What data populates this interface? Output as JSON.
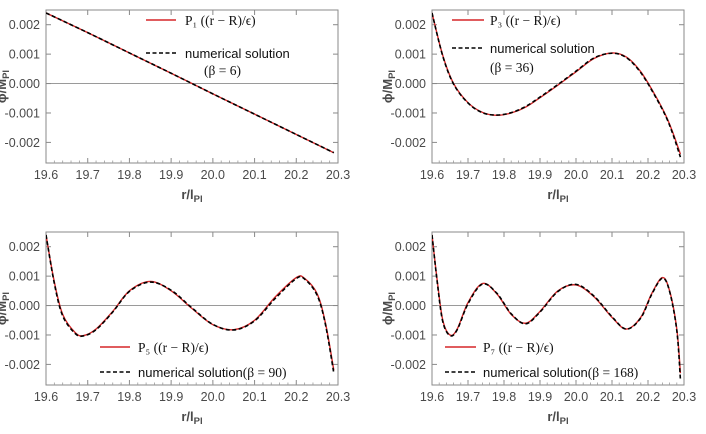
{
  "chart_data": [
    {
      "type": "line",
      "panel": "top-left",
      "xlabel": "r/l_Pl",
      "ylabel": "ϕ/M_Pl",
      "xlim": [
        19.6,
        20.3
      ],
      "ylim": [
        -0.0027,
        0.0025
      ],
      "xticks": [
        "19.6",
        "19.7",
        "19.8",
        "19.9",
        "20.0",
        "20.1",
        "20.2",
        "20.3"
      ],
      "yticks": [
        "0.002",
        "0.001",
        "0.000",
        "-0.001",
        "-0.002"
      ],
      "grid": false,
      "zero_line": true,
      "legend_position": "top-right",
      "series": [
        {
          "name": "P₁ ((r − R)/ϵ)",
          "color": "#d62728",
          "style": "solid",
          "points": [
            [
              19.6,
              0.0024
            ],
            [
              19.7,
              0.00173
            ],
            [
              19.8,
              0.00104
            ],
            [
              19.9,
              0.00035
            ],
            [
              20.0,
              -0.00035
            ],
            [
              20.1,
              -0.00104
            ],
            [
              20.2,
              -0.00173
            ],
            [
              20.29,
              -0.00235
            ]
          ]
        },
        {
          "name": "numerical solution (β = 6)",
          "color": "#000000",
          "style": "dashed",
          "points": [
            [
              19.6,
              0.0024
            ],
            [
              19.7,
              0.00173
            ],
            [
              19.8,
              0.00104
            ],
            [
              19.9,
              0.00035
            ],
            [
              20.0,
              -0.00035
            ],
            [
              20.1,
              -0.00104
            ],
            [
              20.2,
              -0.00173
            ],
            [
              20.29,
              -0.00235
            ]
          ]
        }
      ]
    },
    {
      "type": "line",
      "panel": "top-right",
      "xlabel": "r/l_Pl",
      "ylabel": "ϕ/M_Pl",
      "xlim": [
        19.6,
        20.3
      ],
      "ylim": [
        -0.0027,
        0.0025
      ],
      "xticks": [
        "19.6",
        "19.7",
        "19.8",
        "19.9",
        "20.0",
        "20.1",
        "20.2",
        "20.3"
      ],
      "yticks": [
        "0.002",
        "0.001",
        "0.000",
        "-0.001",
        "-0.002"
      ],
      "grid": false,
      "zero_line": true,
      "legend_position": "top-left",
      "series": [
        {
          "name": "P₃ ((r − R)/ϵ)",
          "color": "#d62728",
          "style": "solid",
          "points": [
            [
              19.6,
              0.0024
            ],
            [
              19.63,
              0.00095
            ],
            [
              19.66,
              0.0
            ],
            [
              19.7,
              -0.00065
            ],
            [
              19.74,
              -0.00098
            ],
            [
              19.78,
              -0.00108
            ],
            [
              19.82,
              -0.001
            ],
            [
              19.86,
              -0.0008
            ],
            [
              19.9,
              -0.00048
            ],
            [
              19.95,
              -5e-05
            ],
            [
              20.0,
              0.0004
            ],
            [
              20.05,
              0.00085
            ],
            [
              20.1,
              0.00104
            ],
            [
              20.14,
              0.0009
            ],
            [
              20.18,
              0.0004
            ],
            [
              20.22,
              -0.0004
            ],
            [
              20.25,
              -0.0011
            ],
            [
              20.27,
              -0.0017
            ],
            [
              20.29,
              -0.0024
            ]
          ]
        },
        {
          "name": "numerical solution (β = 36)",
          "color": "#000000",
          "style": "dashed",
          "points": [
            [
              19.6,
              0.0024
            ],
            [
              19.63,
              0.00093
            ],
            [
              19.66,
              -2e-05
            ],
            [
              19.7,
              -0.00066
            ],
            [
              19.74,
              -0.00099
            ],
            [
              19.78,
              -0.00107
            ],
            [
              19.82,
              -0.00099
            ],
            [
              19.86,
              -0.00078
            ],
            [
              19.9,
              -0.00046
            ],
            [
              19.95,
              -3e-05
            ],
            [
              20.0,
              0.00042
            ],
            [
              20.05,
              0.00087
            ],
            [
              20.1,
              0.00103
            ],
            [
              20.14,
              0.00088
            ],
            [
              20.18,
              0.00037
            ],
            [
              20.22,
              -0.00043
            ],
            [
              20.25,
              -0.00113
            ],
            [
              20.27,
              -0.00175
            ],
            [
              20.29,
              -0.0025
            ]
          ]
        }
      ]
    },
    {
      "type": "line",
      "panel": "bottom-left",
      "xlabel": "r/l_Pl",
      "ylabel": "ϕ/M_Pl",
      "xlim": [
        19.6,
        20.3
      ],
      "ylim": [
        -0.0027,
        0.0025
      ],
      "xticks": [
        "19.6",
        "19.7",
        "19.8",
        "19.9",
        "20.0",
        "20.1",
        "20.2",
        "20.3"
      ],
      "yticks": [
        "0.002",
        "0.001",
        "0.000",
        "-0.001",
        "-0.002"
      ],
      "grid": false,
      "zero_line": true,
      "legend_position": "bottom",
      "series": [
        {
          "name": "P₅ ((r − R)/ϵ)",
          "color": "#d62728",
          "style": "solid",
          "points": [
            [
              19.6,
              0.0024
            ],
            [
              19.62,
              0.0008
            ],
            [
              19.64,
              -0.0003
            ],
            [
              19.67,
              -0.00092
            ],
            [
              19.69,
              -0.00102
            ],
            [
              19.72,
              -0.0008
            ],
            [
              19.76,
              -0.0002
            ],
            [
              19.8,
              0.0005
            ],
            [
              19.85,
              0.00082
            ],
            [
              19.9,
              0.0005
            ],
            [
              19.95,
              -0.0001
            ],
            [
              20.0,
              -0.00065
            ],
            [
              20.05,
              -0.00082
            ],
            [
              20.1,
              -0.0005
            ],
            [
              20.15,
              0.0003
            ],
            [
              20.2,
              0.00095
            ],
            [
              20.22,
              0.00092
            ],
            [
              20.25,
              0.0004
            ],
            [
              20.27,
              -0.0006
            ],
            [
              20.29,
              -0.0022
            ]
          ]
        },
        {
          "name": "numerical solution (β = 90)",
          "color": "#000000",
          "style": "dashed",
          "points": [
            [
              19.6,
              0.0024
            ],
            [
              19.62,
              0.00075
            ],
            [
              19.64,
              -0.00035
            ],
            [
              19.67,
              -0.00095
            ],
            [
              19.69,
              -0.00103
            ],
            [
              19.72,
              -0.00082
            ],
            [
              19.76,
              -0.00022
            ],
            [
              19.8,
              0.00048
            ],
            [
              19.85,
              0.0008
            ],
            [
              19.9,
              0.00052
            ],
            [
              19.95,
              -8e-05
            ],
            [
              20.0,
              -0.00064
            ],
            [
              20.05,
              -0.00083
            ],
            [
              20.1,
              -0.00052
            ],
            [
              20.15,
              0.00025
            ],
            [
              20.2,
              0.00092
            ],
            [
              20.22,
              0.0009
            ],
            [
              20.25,
              0.00035
            ],
            [
              20.27,
              -0.00065
            ],
            [
              20.29,
              -0.0023
            ]
          ]
        }
      ]
    },
    {
      "type": "line",
      "panel": "bottom-right",
      "xlabel": "r/l_Pl",
      "ylabel": "ϕ/M_Pl",
      "xlim": [
        19.6,
        20.3
      ],
      "ylim": [
        -0.0027,
        0.0025
      ],
      "xticks": [
        "19.6",
        "19.7",
        "19.8",
        "19.9",
        "20.0",
        "20.1",
        "20.2",
        "20.3"
      ],
      "yticks": [
        "0.002",
        "0.001",
        "0.000",
        "-0.001",
        "-0.002"
      ],
      "grid": false,
      "zero_line": true,
      "legend_position": "bottom",
      "series": [
        {
          "name": "P₇ ((r − R)/ϵ)",
          "color": "#d62728",
          "style": "solid",
          "points": [
            [
              19.6,
              0.0024
            ],
            [
              19.615,
              0.0008
            ],
            [
              19.63,
              -0.0005
            ],
            [
              19.65,
              -0.001
            ],
            [
              19.67,
              -0.0008
            ],
            [
              19.7,
              0.0001
            ],
            [
              19.74,
              0.00075
            ],
            [
              19.78,
              0.0004
            ],
            [
              19.82,
              -0.0003
            ],
            [
              19.86,
              -0.0006
            ],
            [
              19.9,
              -0.0002
            ],
            [
              19.95,
              0.0005
            ],
            [
              20.0,
              0.0007
            ],
            [
              20.05,
              0.0003
            ],
            [
              20.1,
              -0.0004
            ],
            [
              20.14,
              -0.0008
            ],
            [
              20.18,
              -0.0004
            ],
            [
              20.21,
              0.0004
            ],
            [
              20.24,
              0.00095
            ],
            [
              20.26,
              0.0005
            ],
            [
              20.28,
              -0.0008
            ],
            [
              20.29,
              -0.0023
            ]
          ]
        },
        {
          "name": "numerical solution (β = 168)",
          "color": "#000000",
          "style": "dashed",
          "points": [
            [
              19.6,
              0.0024
            ],
            [
              19.615,
              0.00075
            ],
            [
              19.63,
              -0.00055
            ],
            [
              19.65,
              -0.00102
            ],
            [
              19.67,
              -0.00082
            ],
            [
              19.7,
              6e-05
            ],
            [
              19.74,
              0.00073
            ],
            [
              19.78,
              0.00042
            ],
            [
              19.82,
              -0.00028
            ],
            [
              19.86,
              -0.00062
            ],
            [
              19.9,
              -0.00022
            ],
            [
              19.95,
              0.00048
            ],
            [
              20.0,
              0.00072
            ],
            [
              20.05,
              0.00032
            ],
            [
              20.1,
              -0.00038
            ],
            [
              20.14,
              -0.0008
            ],
            [
              20.18,
              -0.00042
            ],
            [
              20.21,
              0.00037
            ],
            [
              20.24,
              0.00093
            ],
            [
              20.26,
              0.00048
            ],
            [
              20.28,
              -0.00085
            ],
            [
              20.29,
              -0.0025
            ]
          ]
        }
      ]
    }
  ]
}
